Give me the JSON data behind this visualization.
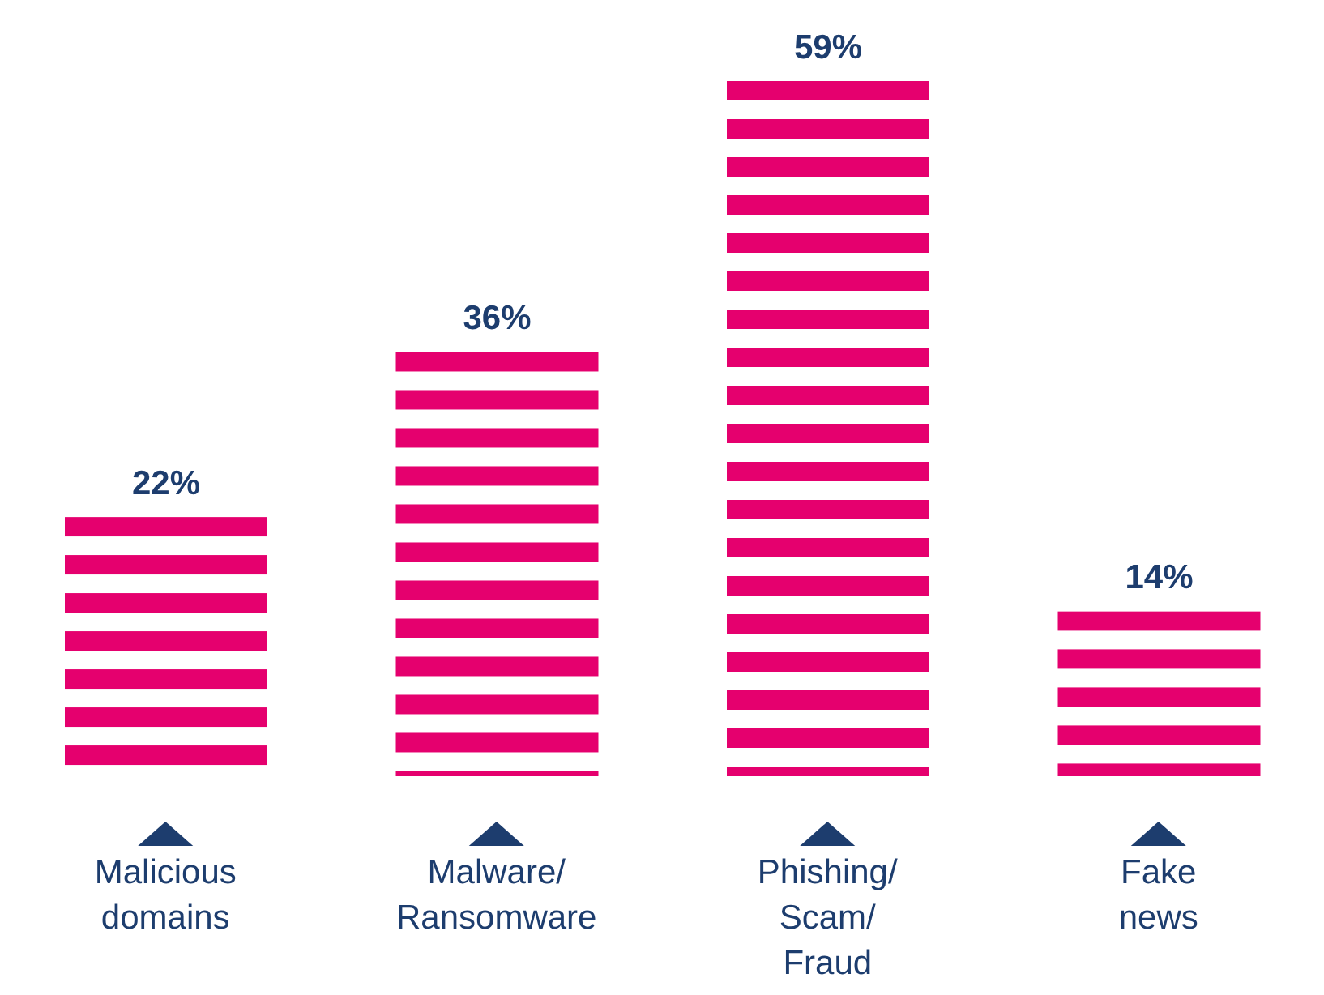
{
  "chart_data": {
    "type": "bar",
    "categories": [
      "Malicious domains",
      "Malware/Ransomware",
      "Phishing/Scam/Fraud",
      "Fake news"
    ],
    "values": [
      22,
      36,
      59,
      14
    ],
    "value_labels": [
      "22%",
      "36%",
      "59%",
      "14%"
    ],
    "color": "#e5006e"
  }
}
